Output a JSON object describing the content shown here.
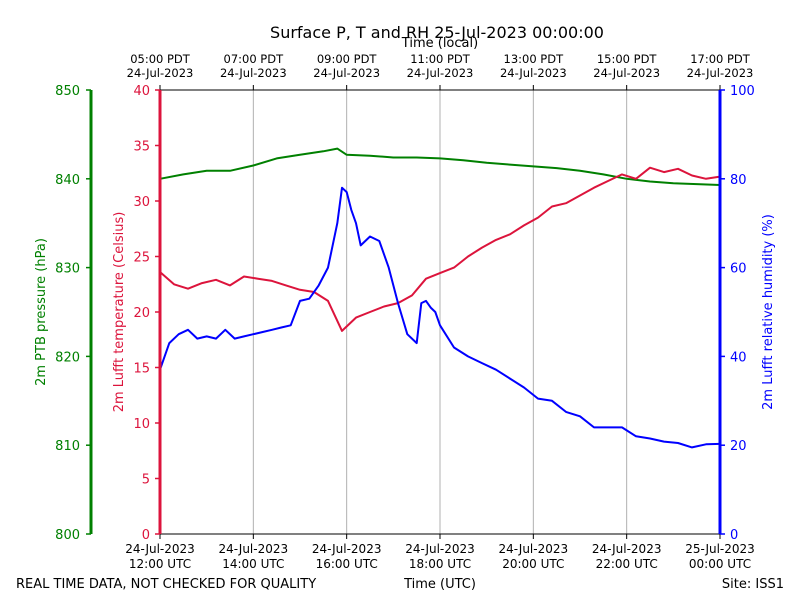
{
  "chart_data": {
    "type": "line",
    "title": "Surface P, T and RH 25-Jul-2023 00:00:00",
    "xlabel": "Time (UTC)",
    "xlabel_top": "Time (local)",
    "x_ticks_utc": [
      [
        "24-Jul-2023",
        "12:00 UTC"
      ],
      [
        "24-Jul-2023",
        "14:00 UTC"
      ],
      [
        "24-Jul-2023",
        "16:00 UTC"
      ],
      [
        "24-Jul-2023",
        "18:00 UTC"
      ],
      [
        "24-Jul-2023",
        "20:00 UTC"
      ],
      [
        "24-Jul-2023",
        "22:00 UTC"
      ],
      [
        "25-Jul-2023",
        "00:00 UTC"
      ]
    ],
    "x_ticks_local": [
      [
        "05:00 PDT",
        "24-Jul-2023"
      ],
      [
        "07:00 PDT",
        "24-Jul-2023"
      ],
      [
        "09:00 PDT",
        "24-Jul-2023"
      ],
      [
        "11:00 PDT",
        "24-Jul-2023"
      ],
      [
        "13:00 PDT",
        "24-Jul-2023"
      ],
      [
        "15:00 PDT",
        "24-Jul-2023"
      ],
      [
        "17:00 PDT",
        "24-Jul-2023"
      ]
    ],
    "x_range_hours_utc": [
      12,
      24
    ],
    "grid": "vertical",
    "axes": {
      "pressure": {
        "label": "2m PTB pressure (hPa)",
        "range": [
          800,
          850
        ],
        "ticks": [
          800,
          810,
          820,
          830,
          840,
          850
        ],
        "color": "#008000"
      },
      "temperature": {
        "label": "2m Lufft temperature (Celsius)",
        "range": [
          0,
          40
        ],
        "ticks": [
          0,
          5,
          10,
          15,
          20,
          25,
          30,
          35,
          40
        ],
        "color": "#dc143c"
      },
      "humidity": {
        "label": "2m Lufft relative humidity (%)",
        "range": [
          0,
          100
        ],
        "ticks": [
          0,
          20,
          40,
          60,
          80,
          100
        ],
        "color": "#0000ff"
      }
    },
    "series": [
      {
        "axis": "pressure",
        "color": "#008000",
        "x": [
          12.0,
          12.5,
          13.0,
          13.5,
          14.0,
          14.5,
          15.0,
          15.5,
          15.8,
          16.0,
          16.5,
          17.0,
          17.5,
          18.0,
          18.5,
          19.0,
          19.5,
          20.0,
          20.5,
          21.0,
          21.5,
          22.0,
          22.5,
          23.0,
          23.5,
          24.0
        ],
        "values": [
          840.0,
          840.5,
          840.9,
          840.9,
          841.5,
          842.3,
          842.7,
          843.1,
          843.4,
          842.7,
          842.6,
          842.4,
          842.4,
          842.3,
          842.1,
          841.8,
          841.6,
          841.4,
          841.2,
          840.9,
          840.5,
          840.0,
          839.7,
          839.5,
          839.4,
          839.3
        ]
      },
      {
        "axis": "temperature",
        "color": "#dc143c",
        "x": [
          12.0,
          12.3,
          12.6,
          12.9,
          13.2,
          13.5,
          13.8,
          14.1,
          14.4,
          14.7,
          15.0,
          15.3,
          15.6,
          15.9,
          16.2,
          16.5,
          16.8,
          17.1,
          17.4,
          17.7,
          18.0,
          18.3,
          18.6,
          18.9,
          19.2,
          19.5,
          19.8,
          20.1,
          20.4,
          20.7,
          21.0,
          21.3,
          21.6,
          21.9,
          22.2,
          22.5,
          22.8,
          23.1,
          23.4,
          23.7,
          24.0
        ],
        "values": [
          23.6,
          22.5,
          22.1,
          22.6,
          22.9,
          22.4,
          23.2,
          23.0,
          22.8,
          22.4,
          22.0,
          21.8,
          21.0,
          18.3,
          19.5,
          20.0,
          20.5,
          20.8,
          21.5,
          23.0,
          23.5,
          24.0,
          25.0,
          25.8,
          26.5,
          27.0,
          27.8,
          28.5,
          29.5,
          29.8,
          30.5,
          31.2,
          31.8,
          32.4,
          32.0,
          33.0,
          32.6,
          32.9,
          32.3,
          32.0,
          32.2
        ]
      },
      {
        "axis": "humidity",
        "color": "#0000ff",
        "x": [
          12.0,
          12.2,
          12.4,
          12.6,
          12.8,
          13.0,
          13.2,
          13.4,
          13.6,
          13.8,
          14.0,
          14.2,
          14.4,
          14.6,
          14.8,
          15.0,
          15.2,
          15.4,
          15.6,
          15.8,
          15.9,
          16.0,
          16.1,
          16.2,
          16.3,
          16.5,
          16.7,
          16.9,
          17.1,
          17.3,
          17.5,
          17.6,
          17.7,
          17.8,
          17.9,
          18.0,
          18.3,
          18.6,
          18.9,
          19.2,
          19.5,
          19.8,
          20.1,
          20.4,
          20.7,
          21.0,
          21.3,
          21.6,
          21.9,
          22.2,
          22.5,
          22.8,
          23.1,
          23.4,
          23.7,
          24.0
        ],
        "values": [
          37.0,
          43.0,
          45.0,
          46.0,
          44.0,
          44.5,
          44.0,
          46.0,
          44.0,
          44.5,
          45.0,
          45.5,
          46.0,
          46.5,
          47.0,
          52.5,
          53.0,
          56.0,
          60.0,
          70.0,
          78.0,
          77.0,
          73.0,
          70.0,
          65.0,
          67.0,
          66.0,
          60.0,
          52.0,
          45.0,
          43.0,
          52.0,
          52.5,
          51.0,
          50.0,
          47.0,
          42.0,
          40.0,
          38.5,
          37.0,
          35.0,
          33.0,
          30.5,
          30.0,
          27.5,
          26.5,
          24.0,
          24.0,
          24.0,
          22.0,
          21.5,
          20.8,
          20.5,
          19.5,
          20.2,
          20.3
        ]
      }
    ]
  },
  "footer": {
    "left": "REAL TIME DATA, NOT CHECKED FOR QUALITY",
    "right": "Site: ISS1"
  }
}
